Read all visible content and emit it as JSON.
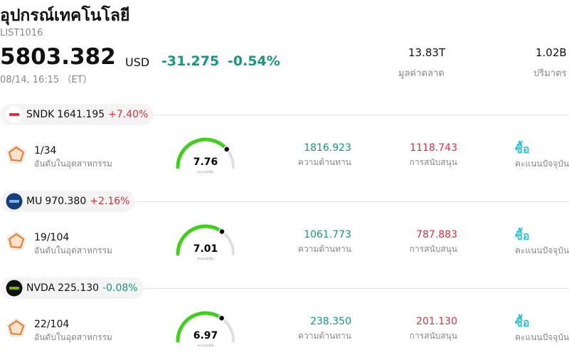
{
  "header": {
    "title": "อุปกรณ์เทคโนโลยี",
    "code": "LIST1016",
    "price": "5803.382",
    "currency": "USD",
    "change": "-31.275",
    "change_pct": "-0.54%",
    "time": "08/14, 16:15 （ET）"
  },
  "stats": [
    {
      "value": "13.83T",
      "label": "มูลค่าตลาด"
    },
    {
      "value": "1.02B",
      "label": "ปริมาตร"
    }
  ],
  "stocks": [
    {
      "ticker": "SNDK",
      "price": "1641.195",
      "change": "+7.40%",
      "rank": "1/34",
      "rank_label": "อันดับในอุตสาหกรรม",
      "score": 7.76,
      "score_label": "คะแนนหุ้น",
      "resistance": "1816.923",
      "resistance_label": "ความต้านทาน",
      "support": "1118.743",
      "support_label": "การสนับสนุน",
      "signal": "ซื้อ",
      "signal_label": "คะแนนปัจจุบัน"
    },
    {
      "ticker": "MU",
      "price": "970.380",
      "change": "+2.16%",
      "rank": "19/104",
      "rank_label": "อันดับในอุตสาหกรรม",
      "score": 7.01,
      "score_label": "คะแนนหุ้น",
      "resistance": "1061.773",
      "resistance_label": "ความต้านทาน",
      "support": "787.883",
      "support_label": "การสนับสนุน",
      "signal": "ซื้อ",
      "signal_label": "คะแนนปัจจุบัน"
    },
    {
      "ticker": "NVDA",
      "price": "225.130",
      "change": "-0.08%",
      "rank": "22/104",
      "rank_label": "อันดับในอุตสาหกรรม",
      "score": 6.97,
      "score_label": "คะแนนหุ้น",
      "resistance": "238.350",
      "resistance_label": "ความต้านทาน",
      "support": "201.130",
      "support_label": "การสนับสนุน",
      "signal": "ซื้อ",
      "signal_label": "คะแนนปัจจุบัน"
    }
  ]
}
